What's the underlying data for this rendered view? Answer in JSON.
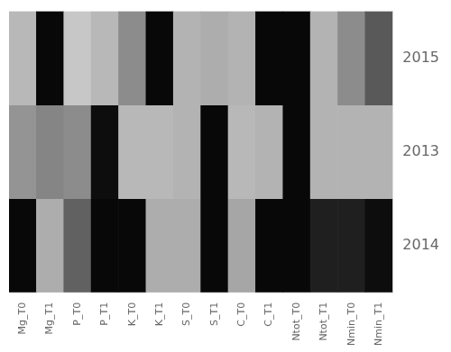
{
  "chart_data": {
    "type": "heatmap",
    "categories": [
      "Mg_T0",
      "Mg_T1",
      "P_T0",
      "P_T1",
      "K_T0",
      "K_T1",
      "S_T0",
      "S_T1",
      "C_T0",
      "C_T1",
      "Ntot_T0",
      "Ntot_T1",
      "Nmin_T0",
      "Nmin_T1"
    ],
    "rows": [
      "2015",
      "2013",
      "2014"
    ],
    "values": [
      [
        0.72,
        0.03,
        0.78,
        0.72,
        0.55,
        0.03,
        0.7,
        0.68,
        0.7,
        0.03,
        0.03,
        0.7,
        0.55,
        0.35
      ],
      [
        0.58,
        0.52,
        0.55,
        0.05,
        0.72,
        0.72,
        0.7,
        0.03,
        0.72,
        0.7,
        0.03,
        0.7,
        0.7,
        0.7
      ],
      [
        0.03,
        0.68,
        0.38,
        0.03,
        0.03,
        0.68,
        0.68,
        0.03,
        0.65,
        0.03,
        0.03,
        0.12,
        0.12,
        0.05
      ]
    ],
    "color_range": [
      0,
      1
    ],
    "grid": false
  }
}
